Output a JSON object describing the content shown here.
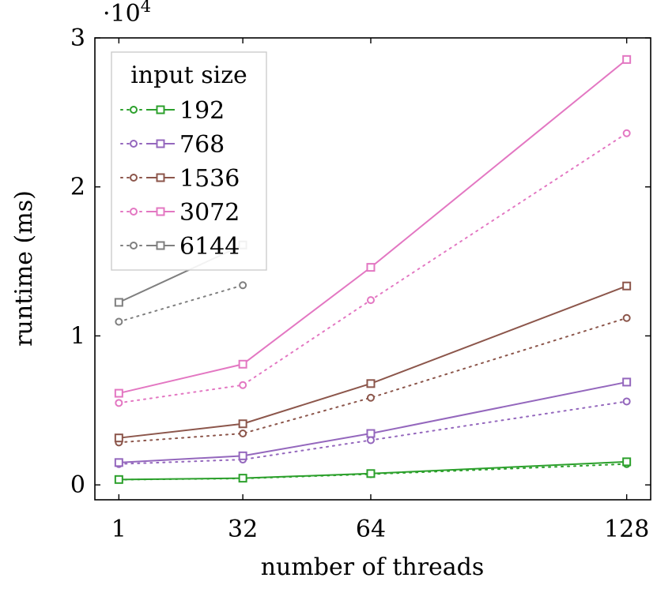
{
  "chart_data": {
    "type": "line",
    "xlabel": "number of threads",
    "ylabel": "runtime (ms)",
    "y_multiplier_label": "·10",
    "y_multiplier_exponent": "4",
    "x_ticks": [
      1,
      32,
      64,
      128
    ],
    "y_ticks": [
      0,
      1,
      2,
      3
    ],
    "y_tick_scale": 10000,
    "xlim": [
      -5,
      134
    ],
    "ylim": [
      -1000,
      30000
    ],
    "grid": false,
    "legend": {
      "title": "input size",
      "placement": "top-left"
    },
    "series": [
      {
        "name": "192",
        "color": "#2ca02c",
        "dotted_circle": [
          [
            1,
            350
          ],
          [
            32,
            430
          ],
          [
            64,
            720
          ],
          [
            128,
            1400
          ]
        ],
        "solid_square": [
          [
            1,
            360
          ],
          [
            32,
            450
          ],
          [
            64,
            760
          ],
          [
            128,
            1550
          ]
        ]
      },
      {
        "name": "768",
        "color": "#9467bd",
        "dotted_circle": [
          [
            1,
            1400
          ],
          [
            32,
            1700
          ],
          [
            64,
            3000
          ],
          [
            128,
            5600
          ]
        ],
        "solid_square": [
          [
            1,
            1500
          ],
          [
            32,
            1950
          ],
          [
            64,
            3450
          ],
          [
            128,
            6900
          ]
        ]
      },
      {
        "name": "1536",
        "color": "#8c564b",
        "dotted_circle": [
          [
            1,
            2850
          ],
          [
            32,
            3450
          ],
          [
            64,
            5850
          ],
          [
            128,
            11200
          ]
        ],
        "solid_square": [
          [
            1,
            3150
          ],
          [
            32,
            4100
          ],
          [
            64,
            6800
          ],
          [
            128,
            13350
          ]
        ]
      },
      {
        "name": "3072",
        "color": "#e377c2",
        "dotted_circle": [
          [
            1,
            5500
          ],
          [
            32,
            6700
          ],
          [
            64,
            12400
          ],
          [
            128,
            23600
          ]
        ],
        "solid_square": [
          [
            1,
            6150
          ],
          [
            32,
            8100
          ],
          [
            64,
            14600
          ],
          [
            128,
            28550
          ]
        ]
      },
      {
        "name": "6144",
        "color": "#7f7f7f",
        "dotted_circle": [
          [
            1,
            10950
          ],
          [
            32,
            13400
          ]
        ],
        "solid_square": [
          [
            1,
            12250
          ],
          [
            32,
            16100
          ]
        ]
      }
    ]
  }
}
